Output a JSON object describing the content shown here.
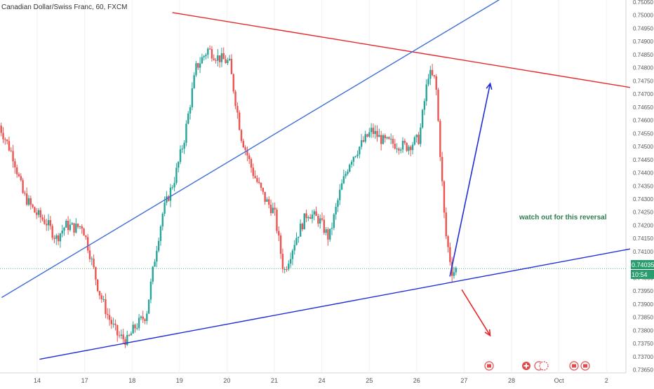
{
  "header": {
    "symbol_title": "Canadian Dollar/Swiss Franc, 60, FXCM"
  },
  "chart_data": {
    "type": "candlestick",
    "title": "Canadian Dollar/Swiss Franc, 60, FXCM",
    "y_range": [
      0.7363,
      0.7505
    ],
    "y_ticks": [
      "0.75050",
      "0.75000",
      "0.74950",
      "0.74900",
      "0.74850",
      "0.74800",
      "0.74750",
      "0.74700",
      "0.74650",
      "0.74600",
      "0.74550",
      "0.74500",
      "0.74450",
      "0.74400",
      "0.74350",
      "0.74300",
      "0.74250",
      "0.74200",
      "0.74150",
      "0.74100",
      "0.74050",
      "0.74000",
      "0.73950",
      "0.73900",
      "0.73850",
      "0.73800",
      "0.73750",
      "0.73700",
      "0.73650"
    ],
    "x_ticks": [
      {
        "label": "14",
        "day": 0
      },
      {
        "label": "17",
        "day": 1
      },
      {
        "label": "18",
        "day": 2
      },
      {
        "label": "19",
        "day": 3
      },
      {
        "label": "20",
        "day": 4
      },
      {
        "label": "21",
        "day": 5
      },
      {
        "label": "24",
        "day": 6
      },
      {
        "label": "25",
        "day": 7
      },
      {
        "label": "26",
        "day": 8
      },
      {
        "label": "27",
        "day": 9
      },
      {
        "label": "28",
        "day": 10
      },
      {
        "label": "Oct",
        "day": 11
      },
      {
        "label": "2",
        "day": 12
      }
    ],
    "current_price": {
      "label": "0.74035",
      "value": 0.74035,
      "countdown": "10:54"
    },
    "trendlines": [
      {
        "name": "resistance",
        "color": "#e8262a",
        "from": {
          "day": 2.85,
          "price": 0.7501
        },
        "to": {
          "day": 12.5,
          "price": 0.74725
        }
      },
      {
        "name": "rising-channel",
        "color": "#3d6fd6",
        "from": {
          "day": -0.75,
          "price": 0.73925
        },
        "to": {
          "day": 9.75,
          "price": 0.7506
        }
      },
      {
        "name": "support",
        "color": "#1f2ed8",
        "from": {
          "day": 0.05,
          "price": 0.7369
        },
        "to": {
          "day": 12.5,
          "price": 0.7411
        }
      }
    ],
    "arrows": [
      {
        "name": "up-arrow",
        "color": "#1f2ed8",
        "from": {
          "day": 8.7,
          "price": 0.74005
        },
        "to": {
          "day": 9.55,
          "price": 0.7474
        }
      },
      {
        "name": "down-arrow",
        "color": "#e8262a",
        "from": {
          "day": 8.95,
          "price": 0.73955
        },
        "to": {
          "day": 9.55,
          "price": 0.7378
        }
      }
    ],
    "annotation": {
      "text": "watch out for this reversal",
      "color": "#2e7d4f"
    },
    "price_path": [
      {
        "day": -0.8,
        "price": 0.7458
      },
      {
        "day": -0.5,
        "price": 0.7446
      },
      {
        "day": -0.3,
        "price": 0.7432
      },
      {
        "day": -0.05,
        "price": 0.7425
      },
      {
        "day": 0.2,
        "price": 0.7421
      },
      {
        "day": 0.4,
        "price": 0.7415
      },
      {
        "day": 0.6,
        "price": 0.742
      },
      {
        "day": 0.8,
        "price": 0.7419
      },
      {
        "day": 0.95,
        "price": 0.742
      },
      {
        "day": 1.1,
        "price": 0.741
      },
      {
        "day": 1.3,
        "price": 0.7395
      },
      {
        "day": 1.5,
        "price": 0.7385
      },
      {
        "day": 1.7,
        "price": 0.7378
      },
      {
        "day": 1.9,
        "price": 0.7376
      },
      {
        "day": 2.05,
        "price": 0.7381
      },
      {
        "day": 2.3,
        "price": 0.7386
      },
      {
        "day": 2.5,
        "price": 0.741
      },
      {
        "day": 2.65,
        "price": 0.7425
      },
      {
        "day": 2.9,
        "price": 0.7438
      },
      {
        "day": 3.1,
        "price": 0.7453
      },
      {
        "day": 3.35,
        "price": 0.748
      },
      {
        "day": 3.6,
        "price": 0.7487
      },
      {
        "day": 3.8,
        "price": 0.7484
      },
      {
        "day": 4.05,
        "price": 0.7482
      },
      {
        "day": 4.3,
        "price": 0.7454
      },
      {
        "day": 4.55,
        "price": 0.744
      },
      {
        "day": 4.8,
        "price": 0.743
      },
      {
        "day": 5.0,
        "price": 0.7425
      },
      {
        "day": 5.2,
        "price": 0.7402
      },
      {
        "day": 5.45,
        "price": 0.7415
      },
      {
        "day": 5.7,
        "price": 0.7425
      },
      {
        "day": 5.95,
        "price": 0.7422
      },
      {
        "day": 6.15,
        "price": 0.7415
      },
      {
        "day": 6.4,
        "price": 0.7434
      },
      {
        "day": 6.6,
        "price": 0.7445
      },
      {
        "day": 6.8,
        "price": 0.745
      },
      {
        "day": 7.05,
        "price": 0.7456
      },
      {
        "day": 7.3,
        "price": 0.7452
      },
      {
        "day": 7.55,
        "price": 0.7451
      },
      {
        "day": 7.8,
        "price": 0.745
      },
      {
        "day": 8.05,
        "price": 0.7453
      },
      {
        "day": 8.25,
        "price": 0.7478
      },
      {
        "day": 8.4,
        "price": 0.7475
      },
      {
        "day": 8.6,
        "price": 0.7418
      },
      {
        "day": 8.75,
        "price": 0.7402
      },
      {
        "day": 8.85,
        "price": 0.74035
      }
    ]
  }
}
